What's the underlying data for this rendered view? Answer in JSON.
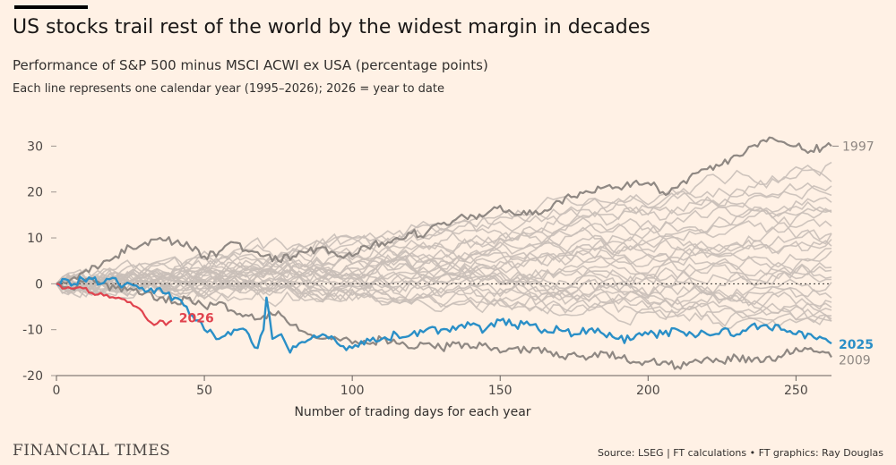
{
  "header": {
    "title": "US stocks trail rest of the world by the widest margin in decades",
    "subtitle": "Performance of S&P 500 minus MSCI ACWI ex USA (percentage points)",
    "note": "Each line represents one calendar year (1995–2026); 2026 = year to date"
  },
  "footer": {
    "brand": "FINANCIAL TIMES",
    "source": "Source: LSEG | FT calculations • FT graphics: Ray Douglas"
  },
  "colors": {
    "background": "#fff1e5",
    "other_years": "#c9bfb8",
    "highlight_grey": "#8f8883",
    "y2025": "#2a8fc7",
    "y2026": "#e0434e"
  },
  "chart_data": {
    "type": "line",
    "xlabel": "Number of trading days for each year",
    "ylabel": "",
    "xlim": [
      0,
      262
    ],
    "ylim": [
      -20,
      33
    ],
    "x_ticks": [
      0,
      50,
      100,
      150,
      200,
      250
    ],
    "y_ticks": [
      30,
      20,
      10,
      0,
      -10,
      -20
    ],
    "zero_line": "dotted",
    "highlighted_series": [
      {
        "name": "1997",
        "label": "1997",
        "color": "#8f8883",
        "points": [
          [
            0,
            0
          ],
          [
            5,
            1
          ],
          [
            10,
            3
          ],
          [
            15,
            4
          ],
          [
            20,
            6
          ],
          [
            25,
            8
          ],
          [
            30,
            9
          ],
          [
            35,
            10
          ],
          [
            40,
            9
          ],
          [
            45,
            8
          ],
          [
            50,
            6
          ],
          [
            55,
            7
          ],
          [
            60,
            9
          ],
          [
            65,
            7
          ],
          [
            70,
            6
          ],
          [
            75,
            5
          ],
          [
            80,
            6
          ],
          [
            85,
            7
          ],
          [
            90,
            8
          ],
          [
            95,
            6
          ],
          [
            100,
            6
          ],
          [
            105,
            8
          ],
          [
            110,
            9
          ],
          [
            115,
            10
          ],
          [
            120,
            11
          ],
          [
            125,
            11
          ],
          [
            130,
            13
          ],
          [
            135,
            14
          ],
          [
            140,
            15
          ],
          [
            145,
            15
          ],
          [
            150,
            17
          ],
          [
            155,
            15
          ],
          [
            160,
            16
          ],
          [
            165,
            16
          ],
          [
            170,
            18
          ],
          [
            175,
            19
          ],
          [
            180,
            20
          ],
          [
            185,
            21
          ],
          [
            190,
            21
          ],
          [
            195,
            22
          ],
          [
            200,
            22
          ],
          [
            205,
            20
          ],
          [
            210,
            21
          ],
          [
            215,
            24
          ],
          [
            220,
            25
          ],
          [
            225,
            26
          ],
          [
            230,
            28
          ],
          [
            235,
            30
          ],
          [
            240,
            31
          ],
          [
            245,
            31
          ],
          [
            250,
            30
          ],
          [
            255,
            29
          ],
          [
            260,
            30
          ],
          [
            262,
            30
          ]
        ]
      },
      {
        "name": "2009",
        "label": "2009",
        "color": "#8f8883",
        "points": [
          [
            0,
            0
          ],
          [
            5,
            -1
          ],
          [
            10,
            1
          ],
          [
            15,
            0
          ],
          [
            20,
            -1
          ],
          [
            25,
            -1
          ],
          [
            30,
            -2
          ],
          [
            35,
            -3
          ],
          [
            40,
            -4
          ],
          [
            45,
            -3
          ],
          [
            50,
            -5
          ],
          [
            55,
            -4
          ],
          [
            60,
            -6
          ],
          [
            65,
            -7
          ],
          [
            70,
            -7
          ],
          [
            75,
            -6
          ],
          [
            80,
            -9
          ],
          [
            85,
            -11
          ],
          [
            90,
            -12
          ],
          [
            95,
            -12
          ],
          [
            100,
            -13
          ],
          [
            105,
            -13
          ],
          [
            110,
            -12
          ],
          [
            115,
            -13
          ],
          [
            120,
            -14
          ],
          [
            125,
            -13
          ],
          [
            130,
            -14
          ],
          [
            135,
            -13
          ],
          [
            140,
            -14
          ],
          [
            145,
            -13
          ],
          [
            150,
            -15
          ],
          [
            155,
            -14
          ],
          [
            160,
            -15
          ],
          [
            165,
            -14
          ],
          [
            170,
            -16
          ],
          [
            175,
            -15
          ],
          [
            180,
            -16
          ],
          [
            185,
            -15
          ],
          [
            190,
            -16
          ],
          [
            195,
            -17
          ],
          [
            200,
            -17
          ],
          [
            205,
            -17
          ],
          [
            210,
            -18
          ],
          [
            215,
            -17
          ],
          [
            220,
            -16
          ],
          [
            225,
            -17
          ],
          [
            230,
            -16
          ],
          [
            235,
            -17
          ],
          [
            240,
            -16
          ],
          [
            245,
            -16
          ],
          [
            250,
            -14
          ],
          [
            255,
            -14
          ],
          [
            260,
            -15
          ],
          [
            262,
            -16
          ]
        ]
      },
      {
        "name": "2025",
        "label": "2025",
        "color": "#2a8fc7",
        "points": [
          [
            0,
            0
          ],
          [
            3,
            1
          ],
          [
            6,
            0
          ],
          [
            9,
            1
          ],
          [
            12,
            1
          ],
          [
            15,
            0
          ],
          [
            18,
            1
          ],
          [
            21,
            0
          ],
          [
            25,
            0
          ],
          [
            28,
            -1
          ],
          [
            32,
            -1
          ],
          [
            36,
            -2
          ],
          [
            40,
            -3
          ],
          [
            44,
            -5
          ],
          [
            47,
            -8
          ],
          [
            50,
            -10
          ],
          [
            55,
            -12
          ],
          [
            60,
            -10
          ],
          [
            65,
            -11
          ],
          [
            68,
            -14
          ],
          [
            70,
            -10
          ],
          [
            71,
            -3
          ],
          [
            73,
            -12
          ],
          [
            76,
            -11
          ],
          [
            79,
            -15
          ],
          [
            82,
            -13
          ],
          [
            86,
            -12
          ],
          [
            90,
            -11
          ],
          [
            95,
            -13
          ],
          [
            100,
            -14
          ],
          [
            105,
            -12
          ],
          [
            110,
            -12
          ],
          [
            115,
            -11
          ],
          [
            120,
            -11
          ],
          [
            125,
            -10
          ],
          [
            130,
            -10
          ],
          [
            135,
            -10
          ],
          [
            140,
            -9
          ],
          [
            145,
            -10
          ],
          [
            150,
            -8
          ],
          [
            155,
            -9
          ],
          [
            160,
            -9
          ],
          [
            165,
            -10
          ],
          [
            170,
            -10
          ],
          [
            175,
            -11
          ],
          [
            180,
            -10
          ],
          [
            185,
            -11
          ],
          [
            190,
            -12
          ],
          [
            195,
            -12
          ],
          [
            200,
            -11
          ],
          [
            205,
            -11
          ],
          [
            210,
            -10
          ],
          [
            215,
            -11
          ],
          [
            220,
            -11
          ],
          [
            225,
            -10
          ],
          [
            230,
            -11
          ],
          [
            235,
            -9
          ],
          [
            240,
            -9
          ],
          [
            245,
            -10
          ],
          [
            250,
            -11
          ],
          [
            255,
            -11
          ],
          [
            260,
            -12
          ],
          [
            262,
            -13
          ]
        ]
      },
      {
        "name": "2026",
        "label": "2026",
        "color": "#e0434e",
        "points": [
          [
            0,
            0
          ],
          [
            3,
            -1
          ],
          [
            6,
            -1
          ],
          [
            9,
            -1
          ],
          [
            12,
            -2
          ],
          [
            15,
            -2
          ],
          [
            18,
            -3
          ],
          [
            21,
            -3
          ],
          [
            24,
            -4
          ],
          [
            27,
            -5
          ],
          [
            29,
            -6
          ],
          [
            31,
            -8
          ],
          [
            33,
            -9
          ],
          [
            35,
            -8
          ],
          [
            37,
            -9
          ],
          [
            39,
            -8
          ]
        ]
      }
    ],
    "other_series_final_values": [
      26,
      24,
      22,
      21,
      19,
      17,
      16,
      14,
      12,
      11,
      10,
      9,
      8,
      7,
      5,
      4,
      3,
      2,
      1,
      -1,
      -2,
      -3,
      -4,
      -5,
      -6,
      -7,
      -8,
      -9
    ]
  }
}
